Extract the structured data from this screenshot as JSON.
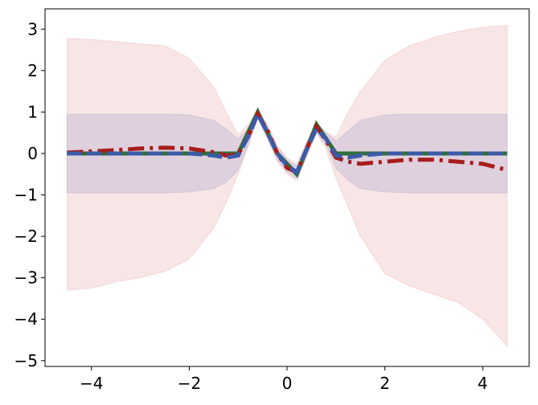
{
  "chart_data": {
    "type": "line",
    "x": [
      -4.5,
      -4,
      -3.5,
      -3,
      -2.5,
      -2,
      -1.5,
      -1.25,
      -1,
      -0.8,
      -0.6,
      -0.4,
      -0.2,
      0,
      0.2,
      0.4,
      0.6,
      0.8,
      1,
      1.25,
      1.5,
      2,
      2.5,
      3,
      3.5,
      4,
      4.5
    ],
    "bands": [
      {
        "color": "rgba(214,110,110,0.18)",
        "lower": [
          -3.3,
          -3.25,
          -3.1,
          -3.0,
          -2.85,
          -2.55,
          -1.8,
          -1.2,
          -0.5,
          0.15,
          0.85,
          0.35,
          -0.2,
          -0.5,
          -0.65,
          -0.1,
          0.5,
          0.1,
          -0.6,
          -1.3,
          -2.0,
          -2.9,
          -3.2,
          -3.4,
          -3.6,
          -4.0,
          -4.65
        ],
        "upper": [
          2.78,
          2.75,
          2.7,
          2.65,
          2.6,
          2.3,
          1.6,
          1.0,
          0.45,
          0.7,
          1.05,
          0.7,
          0.2,
          -0.1,
          -0.25,
          0.3,
          0.75,
          0.5,
          0.4,
          1.0,
          1.5,
          2.25,
          2.6,
          2.8,
          2.95,
          3.05,
          3.1
        ]
      },
      {
        "color": "rgba(120,130,190,0.2)",
        "lower": [
          -0.95,
          -0.95,
          -0.95,
          -0.95,
          -0.95,
          -0.93,
          -0.85,
          -0.7,
          -0.4,
          0.2,
          0.85,
          0.35,
          -0.15,
          -0.45,
          -0.6,
          -0.05,
          0.5,
          0.2,
          -0.35,
          -0.65,
          -0.85,
          -0.93,
          -0.95,
          -0.95,
          -0.95,
          -0.95,
          -0.95
        ],
        "upper": [
          0.95,
          0.95,
          0.95,
          0.95,
          0.95,
          0.93,
          0.8,
          0.6,
          0.35,
          0.6,
          1.05,
          0.65,
          0.15,
          -0.15,
          -0.3,
          0.25,
          0.7,
          0.5,
          0.3,
          0.55,
          0.8,
          0.93,
          0.95,
          0.95,
          0.95,
          0.95,
          0.95
        ]
      }
    ],
    "series": [
      {
        "color": "#2f6e3b",
        "style": "solid",
        "values": [
          0,
          0,
          0,
          0,
          0,
          0,
          0,
          0,
          0,
          0.5,
          1.0,
          0.5,
          0.0,
          -0.25,
          -0.5,
          0.1,
          0.7,
          0.35,
          0,
          0,
          0,
          0,
          0,
          0,
          0,
          0,
          0
        ]
      },
      {
        "color": "#a81c1c",
        "style": "dashdot",
        "values": [
          0.02,
          0.05,
          0.08,
          0.12,
          0.14,
          0.12,
          0.03,
          -0.05,
          -0.02,
          0.4,
          0.95,
          0.55,
          0.0,
          -0.35,
          -0.45,
          0.1,
          0.65,
          0.3,
          -0.1,
          -0.2,
          -0.25,
          -0.2,
          -0.15,
          -0.15,
          -0.2,
          -0.25,
          -0.4
        ]
      },
      {
        "color": "#3b5ba8",
        "style": "dashed",
        "values": [
          0,
          0,
          0,
          0,
          0,
          0,
          -0.05,
          -0.1,
          -0.05,
          0.4,
          0.95,
          0.5,
          0.0,
          -0.3,
          -0.45,
          0.1,
          0.6,
          0.35,
          -0.05,
          -0.1,
          -0.05,
          0,
          0,
          0,
          0,
          0,
          0
        ]
      }
    ],
    "xlim": [
      -4.95,
      4.95
    ],
    "ylim": [
      -5.14,
      3.49
    ],
    "xticks": [
      {
        "value": -4,
        "label": "−4"
      },
      {
        "value": -2,
        "label": "−2"
      },
      0,
      2,
      4
    ],
    "yticks": [
      {
        "value": -5,
        "label": "−5"
      },
      {
        "value": -4,
        "label": "−4"
      },
      {
        "value": -3,
        "label": "−3"
      },
      {
        "value": -2,
        "label": "−2"
      },
      {
        "value": -1,
        "label": "−1"
      },
      0,
      1,
      2,
      3
    ]
  }
}
